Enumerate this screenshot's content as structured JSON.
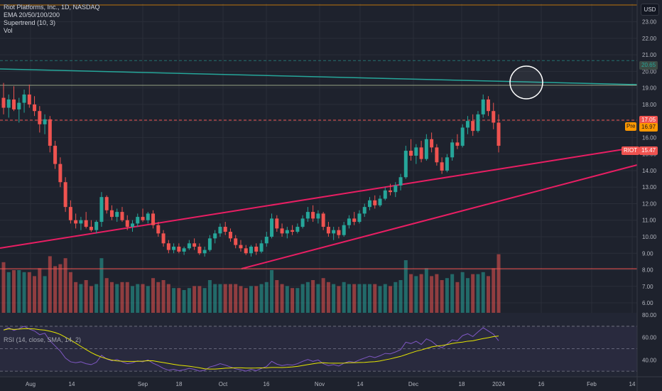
{
  "legend": {
    "title": "Riot Platforms, Inc., 1D, NASDAQ",
    "ema": "EMA 20/50/100/200",
    "supertrend": "Supertrend (10, 3)",
    "vol": "Vol"
  },
  "rsi_legend": "RSI (14, close, SMA, 14, 2)",
  "currency_button": "USD",
  "price_labels": {
    "resistance": "20.65",
    "last_close": "17.05",
    "pre_tag": "Pre",
    "pre_price": "16.97",
    "ticker_tag": "RIOT",
    "ticker_price": "15.47"
  },
  "colors": {
    "up": "#26a69a",
    "down": "#ef5350",
    "trendline": "#e91e63",
    "channel": "#26a69a",
    "rsi": "#7e57c2",
    "rsi_ma": "#e6e600"
  },
  "chart_data": {
    "type": "candlestick",
    "symbol": "RIOT",
    "exchange": "NASDAQ",
    "interval": "1D",
    "y_ticks": [
      6.0,
      7.0,
      8.0,
      9.0,
      10.0,
      11.0,
      12.0,
      13.0,
      14.0,
      15.0,
      16.0,
      17.0,
      18.0,
      19.0,
      20.0,
      21.0,
      22.0,
      23.0
    ],
    "ylim": [
      5.4,
      24.1
    ],
    "x_ticks": [
      "Aug",
      "14",
      "Sep",
      "18",
      "Oct",
      "16",
      "Nov",
      "14",
      "Dec",
      "18",
      "2024",
      "16",
      "Feb",
      "14"
    ],
    "candles": [
      {
        "o": 18.4,
        "h": 19.3,
        "l": 17.4,
        "c": 17.8
      },
      {
        "o": 17.8,
        "h": 18.6,
        "l": 17.2,
        "c": 18.3
      },
      {
        "o": 18.3,
        "h": 19.1,
        "l": 17.6,
        "c": 17.7
      },
      {
        "o": 17.7,
        "h": 18.4,
        "l": 16.9,
        "c": 18.1
      },
      {
        "o": 18.1,
        "h": 18.9,
        "l": 17.5,
        "c": 18.6
      },
      {
        "o": 18.6,
        "h": 19.2,
        "l": 17.8,
        "c": 18.0
      },
      {
        "o": 18.0,
        "h": 18.5,
        "l": 17.3,
        "c": 17.6
      },
      {
        "o": 17.6,
        "h": 17.9,
        "l": 16.3,
        "c": 16.8
      },
      {
        "o": 16.8,
        "h": 17.4,
        "l": 16.2,
        "c": 17.1
      },
      {
        "o": 17.1,
        "h": 17.3,
        "l": 15.1,
        "c": 15.5
      },
      {
        "o": 15.5,
        "h": 15.8,
        "l": 14.1,
        "c": 14.4
      },
      {
        "o": 14.4,
        "h": 14.8,
        "l": 13.0,
        "c": 13.3
      },
      {
        "o": 13.3,
        "h": 13.6,
        "l": 11.5,
        "c": 11.8
      },
      {
        "o": 11.8,
        "h": 12.2,
        "l": 10.8,
        "c": 11.0
      },
      {
        "o": 11.0,
        "h": 11.4,
        "l": 10.5,
        "c": 10.8
      },
      {
        "o": 10.8,
        "h": 11.2,
        "l": 10.4,
        "c": 11.0
      },
      {
        "o": 11.0,
        "h": 11.5,
        "l": 10.5,
        "c": 10.6
      },
      {
        "o": 10.6,
        "h": 11.0,
        "l": 10.3,
        "c": 10.4
      },
      {
        "o": 10.4,
        "h": 11.0,
        "l": 10.2,
        "c": 10.9
      },
      {
        "o": 10.9,
        "h": 12.7,
        "l": 10.6,
        "c": 12.4
      },
      {
        "o": 12.4,
        "h": 12.5,
        "l": 11.4,
        "c": 11.6
      },
      {
        "o": 11.6,
        "h": 11.9,
        "l": 11.0,
        "c": 11.2
      },
      {
        "o": 11.2,
        "h": 11.7,
        "l": 10.9,
        "c": 11.5
      },
      {
        "o": 11.5,
        "h": 11.8,
        "l": 10.9,
        "c": 11.0
      },
      {
        "o": 11.0,
        "h": 11.3,
        "l": 10.4,
        "c": 10.6
      },
      {
        "o": 10.6,
        "h": 11.0,
        "l": 10.3,
        "c": 10.8
      },
      {
        "o": 10.8,
        "h": 11.4,
        "l": 10.6,
        "c": 11.2
      },
      {
        "o": 11.2,
        "h": 11.7,
        "l": 10.9,
        "c": 11.0
      },
      {
        "o": 11.0,
        "h": 11.5,
        "l": 10.8,
        "c": 11.4
      },
      {
        "o": 11.4,
        "h": 11.6,
        "l": 10.5,
        "c": 10.7
      },
      {
        "o": 10.7,
        "h": 10.9,
        "l": 10.0,
        "c": 10.2
      },
      {
        "o": 10.2,
        "h": 10.4,
        "l": 9.4,
        "c": 9.6
      },
      {
        "o": 9.6,
        "h": 9.8,
        "l": 9.0,
        "c": 9.2
      },
      {
        "o": 9.2,
        "h": 9.6,
        "l": 9.0,
        "c": 9.4
      },
      {
        "o": 9.4,
        "h": 9.6,
        "l": 9.0,
        "c": 9.1
      },
      {
        "o": 9.1,
        "h": 9.4,
        "l": 8.9,
        "c": 9.3
      },
      {
        "o": 9.3,
        "h": 9.8,
        "l": 9.2,
        "c": 9.6
      },
      {
        "o": 9.6,
        "h": 9.9,
        "l": 9.2,
        "c": 9.4
      },
      {
        "o": 9.4,
        "h": 9.6,
        "l": 8.9,
        "c": 9.0
      },
      {
        "o": 9.0,
        "h": 9.4,
        "l": 8.8,
        "c": 9.2
      },
      {
        "o": 9.2,
        "h": 10.1,
        "l": 9.1,
        "c": 9.9
      },
      {
        "o": 9.9,
        "h": 10.4,
        "l": 9.6,
        "c": 10.2
      },
      {
        "o": 10.2,
        "h": 10.8,
        "l": 10.0,
        "c": 10.6
      },
      {
        "o": 10.6,
        "h": 10.9,
        "l": 10.1,
        "c": 10.3
      },
      {
        "o": 10.3,
        "h": 10.5,
        "l": 9.7,
        "c": 9.9
      },
      {
        "o": 9.9,
        "h": 10.1,
        "l": 9.3,
        "c": 9.5
      },
      {
        "o": 9.5,
        "h": 9.8,
        "l": 9.1,
        "c": 9.3
      },
      {
        "o": 9.3,
        "h": 9.5,
        "l": 8.9,
        "c": 9.0
      },
      {
        "o": 9.0,
        "h": 9.5,
        "l": 8.8,
        "c": 9.4
      },
      {
        "o": 9.4,
        "h": 9.6,
        "l": 8.9,
        "c": 9.1
      },
      {
        "o": 9.1,
        "h": 9.8,
        "l": 9.0,
        "c": 9.6
      },
      {
        "o": 9.6,
        "h": 10.3,
        "l": 9.4,
        "c": 10.0
      },
      {
        "o": 10.0,
        "h": 11.4,
        "l": 9.9,
        "c": 11.1
      },
      {
        "o": 11.1,
        "h": 11.3,
        "l": 10.3,
        "c": 10.5
      },
      {
        "o": 10.5,
        "h": 10.8,
        "l": 10.0,
        "c": 10.2
      },
      {
        "o": 10.2,
        "h": 10.6,
        "l": 9.9,
        "c": 10.4
      },
      {
        "o": 10.4,
        "h": 10.7,
        "l": 10.1,
        "c": 10.3
      },
      {
        "o": 10.3,
        "h": 10.8,
        "l": 10.2,
        "c": 10.6
      },
      {
        "o": 10.6,
        "h": 11.3,
        "l": 10.5,
        "c": 11.1
      },
      {
        "o": 11.1,
        "h": 11.8,
        "l": 10.9,
        "c": 11.5
      },
      {
        "o": 11.5,
        "h": 11.9,
        "l": 10.9,
        "c": 11.1
      },
      {
        "o": 11.1,
        "h": 11.6,
        "l": 10.8,
        "c": 11.4
      },
      {
        "o": 11.4,
        "h": 11.5,
        "l": 10.4,
        "c": 10.6
      },
      {
        "o": 10.6,
        "h": 10.9,
        "l": 10.0,
        "c": 10.2
      },
      {
        "o": 10.2,
        "h": 10.6,
        "l": 9.8,
        "c": 10.4
      },
      {
        "o": 10.4,
        "h": 10.6,
        "l": 9.9,
        "c": 10.1
      },
      {
        "o": 10.1,
        "h": 10.9,
        "l": 10.0,
        "c": 10.7
      },
      {
        "o": 10.7,
        "h": 11.3,
        "l": 10.5,
        "c": 11.1
      },
      {
        "o": 11.1,
        "h": 11.5,
        "l": 10.7,
        "c": 10.9
      },
      {
        "o": 10.9,
        "h": 11.6,
        "l": 10.8,
        "c": 11.4
      },
      {
        "o": 11.4,
        "h": 12.0,
        "l": 11.2,
        "c": 11.8
      },
      {
        "o": 11.8,
        "h": 12.4,
        "l": 11.6,
        "c": 12.2
      },
      {
        "o": 12.2,
        "h": 12.5,
        "l": 11.7,
        "c": 11.9
      },
      {
        "o": 11.9,
        "h": 12.5,
        "l": 11.8,
        "c": 12.3
      },
      {
        "o": 12.3,
        "h": 13.0,
        "l": 12.2,
        "c": 12.8
      },
      {
        "o": 12.8,
        "h": 13.2,
        "l": 12.5,
        "c": 12.7
      },
      {
        "o": 12.7,
        "h": 13.3,
        "l": 12.4,
        "c": 13.1
      },
      {
        "o": 13.1,
        "h": 13.8,
        "l": 12.8,
        "c": 13.6
      },
      {
        "o": 13.6,
        "h": 15.5,
        "l": 13.5,
        "c": 15.2
      },
      {
        "o": 15.2,
        "h": 15.9,
        "l": 14.6,
        "c": 14.9
      },
      {
        "o": 14.9,
        "h": 15.6,
        "l": 14.4,
        "c": 15.4
      },
      {
        "o": 15.4,
        "h": 15.8,
        "l": 14.5,
        "c": 14.7
      },
      {
        "o": 14.7,
        "h": 16.2,
        "l": 14.6,
        "c": 15.9
      },
      {
        "o": 15.9,
        "h": 16.3,
        "l": 15.1,
        "c": 15.4
      },
      {
        "o": 15.4,
        "h": 15.6,
        "l": 14.3,
        "c": 14.5
      },
      {
        "o": 14.5,
        "h": 14.8,
        "l": 13.8,
        "c": 14.0
      },
      {
        "o": 14.0,
        "h": 15.0,
        "l": 13.9,
        "c": 14.8
      },
      {
        "o": 14.8,
        "h": 15.9,
        "l": 14.6,
        "c": 15.7
      },
      {
        "o": 15.7,
        "h": 16.2,
        "l": 15.3,
        "c": 15.5
      },
      {
        "o": 15.5,
        "h": 16.8,
        "l": 15.4,
        "c": 16.6
      },
      {
        "o": 16.6,
        "h": 17.3,
        "l": 16.2,
        "c": 17.0
      },
      {
        "o": 17.0,
        "h": 17.4,
        "l": 16.1,
        "c": 16.4
      },
      {
        "o": 16.4,
        "h": 17.6,
        "l": 16.3,
        "c": 17.4
      },
      {
        "o": 17.4,
        "h": 18.6,
        "l": 17.2,
        "c": 18.3
      },
      {
        "o": 18.3,
        "h": 18.5,
        "l": 17.3,
        "c": 17.6
      },
      {
        "o": 17.6,
        "h": 18.1,
        "l": 16.5,
        "c": 16.9
      },
      {
        "o": 16.9,
        "h": 17.4,
        "l": 15.1,
        "c": 15.5
      }
    ],
    "horizontal_levels": [
      20.65,
      17.05,
      8.0
    ],
    "annotations": [
      "descending resistance line near 20",
      "rising trend lines",
      "circle marker near 19.8"
    ],
    "rsi": {
      "label": "RSI (14, close, SMA, 14, 2)",
      "y_ticks": [
        40.0,
        60.0,
        80.0
      ],
      "levels": [
        70,
        50,
        30
      ]
    },
    "grid": true,
    "legend": "top-left"
  }
}
